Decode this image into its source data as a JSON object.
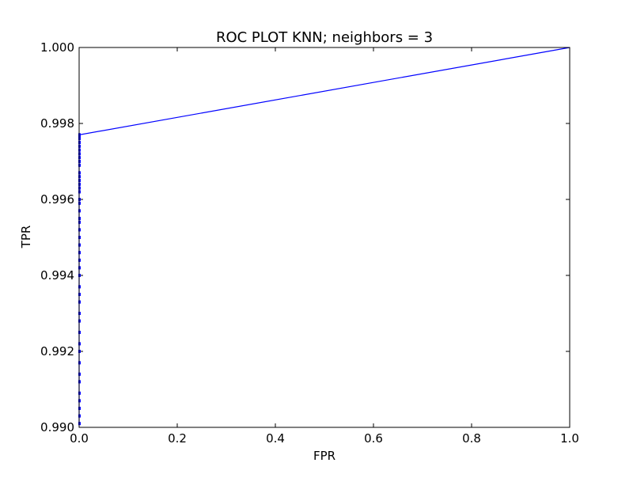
{
  "chart_data": {
    "type": "line",
    "title": "ROC PLOT KNN; neighbors = 3",
    "xlabel": "FPR",
    "ylabel": "TPR",
    "xlim": [
      0.0,
      1.0
    ],
    "ylim": [
      0.99,
      1.0
    ],
    "xticks": [
      "0.0",
      "0.2",
      "0.4",
      "0.6",
      "0.8",
      "1.0"
    ],
    "yticks": [
      "0.990",
      "0.992",
      "0.994",
      "0.996",
      "0.998",
      "1.000"
    ],
    "grid": false,
    "series": [
      {
        "color": "#0000ff",
        "x": [
          0.0,
          0.0,
          0.0,
          0.0,
          0.0,
          0.0,
          0.0,
          0.0,
          0.0,
          0.0,
          0.0,
          0.0,
          0.0,
          0.0,
          0.0,
          0.0,
          0.0,
          0.0,
          0.0,
          0.0,
          0.0,
          0.0,
          0.0,
          0.0,
          0.0,
          0.0,
          0.0,
          0.0,
          0.0,
          0.0,
          0.0,
          0.0,
          0.0,
          0.0,
          0.0,
          0.0,
          0.0,
          0.0,
          0.0,
          0.0,
          0.0,
          0.0,
          0.0,
          0.0,
          0.0,
          1.0
        ],
        "y": [
          0.9901,
          0.9903,
          0.9905,
          0.9907,
          0.9909,
          0.9912,
          0.9914,
          0.9917,
          0.992,
          0.9922,
          0.9925,
          0.9928,
          0.993,
          0.9933,
          0.9935,
          0.9937,
          0.994,
          0.9942,
          0.9944,
          0.9946,
          0.9948,
          0.995,
          0.9952,
          0.9954,
          0.9955,
          0.9957,
          0.9959,
          0.996,
          0.9962,
          0.9963,
          0.9964,
          0.9965,
          0.9966,
          0.9967,
          0.9969,
          0.997,
          0.9971,
          0.9972,
          0.9973,
          0.9974,
          0.9975,
          0.9976,
          0.9977,
          0.99765,
          0.9977,
          1.0
        ]
      }
    ]
  }
}
